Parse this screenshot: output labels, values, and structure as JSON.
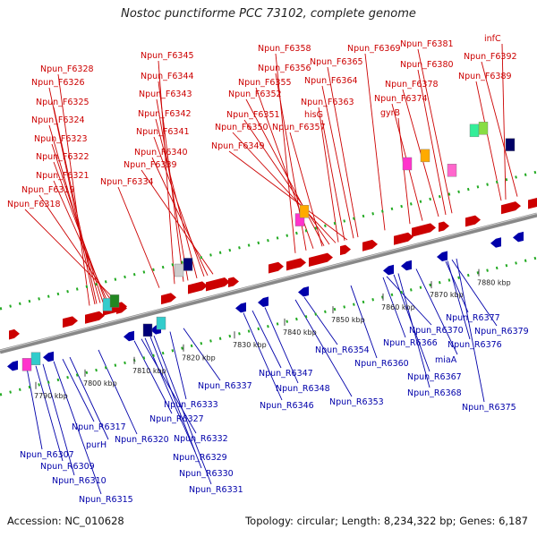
{
  "title": "Nostoc punctiforme PCC 73102, complete genome",
  "footer": {
    "accession": "Accession: NC_010628",
    "summary": "Topology: circular; Length: 8,234,322 bp; Genes: 6,187"
  },
  "colors": {
    "forward": "#cc0000",
    "reverse": "#0000aa",
    "backbone": "#888888",
    "dots": "#22aa22"
  },
  "ticks": [
    "7790 kbp",
    "7800 kbp",
    "7810 kbp",
    "7820 kbp",
    "7830 kbp",
    "7840 kbp",
    "7850 kbp",
    "7860 kbp",
    "7870 kbp",
    "7880 kbp"
  ],
  "forward_labels": [
    "Npun_F6328",
    "Npun_F6326",
    "Npun_F6325",
    "Npun_F6324",
    "Npun_F6323",
    "Npun_F6322",
    "Npun_F6321",
    "Npun_F6319",
    "Npun_F6318",
    "Npun_F6345",
    "Npun_F6344",
    "Npun_F6343",
    "Npun_F6342",
    "Npun_F6341",
    "Npun_F6340",
    "Npun_F6339",
    "Npun_F6334",
    "Npun_F6358",
    "Npun_F6356",
    "Npun_F6355",
    "Npun_F6352",
    "Npun_F6351",
    "Npun_F6350",
    "Npun_F6349",
    "Npun_F6369",
    "Npun_F6365",
    "Npun_F6364",
    "Npun_F6363",
    "hisG",
    "Npun_F6357",
    "Npun_F6381",
    "Npun_F6380",
    "Npun_F6378",
    "Npun_F6374",
    "gyrB",
    "infC",
    "Npun_F6392",
    "Npun_F6389"
  ],
  "reverse_labels": [
    "Npun_R6307",
    "Npun_R6309",
    "Npun_R6310",
    "Npun_R6315",
    "Npun_R6317",
    "purH",
    "Npun_R6320",
    "Npun_R6327",
    "Npun_R6332",
    "Npun_R6329",
    "Npun_R6330",
    "Npun_R6331",
    "Npun_R6333",
    "Npun_R6337",
    "Npun_R6346",
    "Npun_R6347",
    "Npun_R6348",
    "Npun_R6353",
    "Npun_R6354",
    "Npun_R6360",
    "Npun_R6366",
    "Npun_R6367",
    "Npun_R6368",
    "Npun_R6370",
    "miaA",
    "Npun_R6377",
    "Npun_R6379",
    "Npun_R6376",
    "Npun_R6375"
  ]
}
